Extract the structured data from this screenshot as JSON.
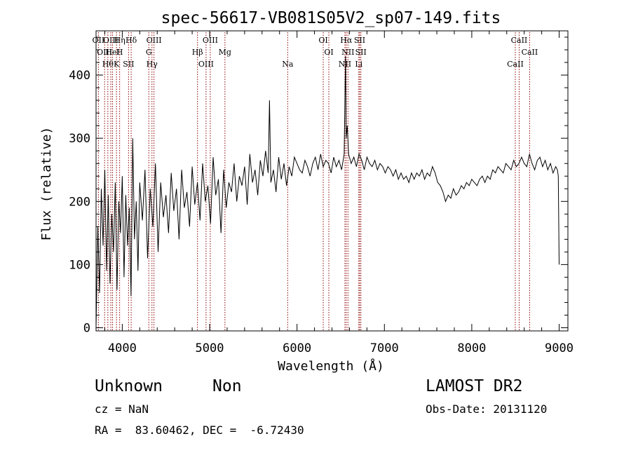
{
  "chart_data": {
    "type": "line",
    "title": "spec-56617-VB081S05V2_sp07-149.fits",
    "xlabel": "Wavelength (Å)",
    "ylabel": "Flux (relative)",
    "xlim": [
      3700,
      9100
    ],
    "ylim": [
      -5,
      470
    ],
    "xticks": [
      4000,
      5000,
      6000,
      7000,
      8000,
      9000
    ],
    "yticks": [
      0,
      100,
      200,
      300,
      400
    ],
    "grid": false,
    "line_color": "#000000",
    "marker_color": "#8b0000",
    "series": [
      {
        "x": [
          3700,
          3720,
          3740,
          3760,
          3780,
          3800,
          3820,
          3840,
          3860,
          3880,
          3900,
          3920,
          3940,
          3960,
          3980,
          4000,
          4020,
          4040,
          4060,
          4080,
          4100,
          4120,
          4140,
          4160,
          4180,
          4200,
          4230,
          4260,
          4290,
          4320,
          4350,
          4380,
          4410,
          4440,
          4470,
          4500,
          4530,
          4560,
          4590,
          4620,
          4650,
          4680,
          4710,
          4740,
          4770,
          4800,
          4830,
          4860,
          4890,
          4920,
          4950,
          4980,
          5010,
          5040,
          5070,
          5100,
          5130,
          5160,
          5190,
          5220,
          5250,
          5280,
          5310,
          5340,
          5370,
          5400,
          5430,
          5460,
          5490,
          5520,
          5550,
          5580,
          5610,
          5640,
          5670,
          5685,
          5700,
          5730,
          5760,
          5790,
          5820,
          5850,
          5880,
          5910,
          5940,
          5970,
          6000,
          6030,
          6060,
          6090,
          6120,
          6150,
          6180,
          6210,
          6240,
          6270,
          6300,
          6330,
          6360,
          6390,
          6420,
          6450,
          6480,
          6510,
          6540,
          6555,
          6563,
          6575,
          6590,
          6620,
          6650,
          6680,
          6710,
          6740,
          6770,
          6800,
          6830,
          6860,
          6890,
          6920,
          6950,
          6980,
          7010,
          7040,
          7070,
          7100,
          7130,
          7160,
          7190,
          7220,
          7250,
          7280,
          7310,
          7340,
          7370,
          7400,
          7430,
          7460,
          7490,
          7520,
          7550,
          7580,
          7610,
          7640,
          7670,
          7700,
          7730,
          7760,
          7790,
          7820,
          7850,
          7880,
          7910,
          7940,
          7970,
          8000,
          8030,
          8060,
          8090,
          8120,
          8150,
          8180,
          8210,
          8240,
          8270,
          8300,
          8330,
          8360,
          8390,
          8420,
          8450,
          8480,
          8510,
          8540,
          8570,
          8600,
          8630,
          8660,
          8690,
          8720,
          8750,
          8780,
          8810,
          8840,
          8870,
          8900,
          8930,
          8960,
          8980,
          8990,
          9000
        ],
        "values": [
          0,
          160,
          55,
          220,
          130,
          250,
          90,
          210,
          70,
          180,
          120,
          230,
          60,
          200,
          150,
          240,
          80,
          210,
          130,
          190,
          50,
          300,
          140,
          200,
          90,
          230,
          170,
          250,
          110,
          220,
          160,
          260,
          120,
          230,
          175,
          210,
          150,
          245,
          185,
          220,
          140,
          250,
          190,
          215,
          160,
          255,
          195,
          230,
          170,
          260,
          200,
          225,
          165,
          270,
          210,
          235,
          150,
          250,
          190,
          230,
          215,
          260,
          200,
          240,
          225,
          255,
          195,
          275,
          230,
          250,
          210,
          265,
          240,
          280,
          245,
          360,
          230,
          250,
          215,
          270,
          235,
          260,
          225,
          255,
          240,
          270,
          260,
          250,
          245,
          265,
          255,
          240,
          260,
          270,
          250,
          275,
          255,
          265,
          260,
          245,
          270,
          255,
          265,
          250,
          275,
          430,
          300,
          320,
          275,
          260,
          270,
          255,
          275,
          265,
          250,
          270,
          260,
          255,
          265,
          250,
          260,
          255,
          245,
          255,
          250,
          240,
          250,
          235,
          245,
          235,
          240,
          230,
          245,
          235,
          245,
          240,
          250,
          235,
          245,
          240,
          255,
          245,
          230,
          225,
          215,
          200,
          210,
          205,
          220,
          210,
          215,
          225,
          220,
          230,
          225,
          235,
          230,
          225,
          235,
          240,
          230,
          240,
          235,
          250,
          245,
          255,
          250,
          245,
          260,
          255,
          250,
          265,
          255,
          260,
          270,
          260,
          255,
          275,
          260,
          250,
          265,
          270,
          255,
          265,
          250,
          260,
          245,
          255,
          250,
          240,
          100
        ]
      }
    ],
    "lines": [
      {
        "x": 3727,
        "labels": [
          "OII"
        ]
      },
      {
        "x": 3798,
        "labels": [
          "OIII"
        ]
      },
      {
        "x": 3835,
        "labels": [
          "Hθ"
        ]
      },
      {
        "x": 3869,
        "labels": [
          "OIII"
        ]
      },
      {
        "x": 3889,
        "labels": [
          "HeI"
        ]
      },
      {
        "x": 3934,
        "labels": [
          "K"
        ]
      },
      {
        "x": 3970,
        "labels": [
          "Hη",
          "H"
        ]
      },
      {
        "x": 4072,
        "labels": [
          "SII"
        ]
      },
      {
        "x": 4102,
        "labels": [
          "Hδ"
        ]
      },
      {
        "x": 4304,
        "labels": [
          "G"
        ]
      },
      {
        "x": 4340,
        "labels": [
          "Hγ"
        ]
      },
      {
        "x": 4363,
        "labels": [
          "OIII"
        ]
      },
      {
        "x": 4861,
        "labels": [
          "Hβ"
        ]
      },
      {
        "x": 4959,
        "labels": [
          "OIII"
        ]
      },
      {
        "x": 5007,
        "labels": [
          "OIII"
        ]
      },
      {
        "x": 5175,
        "labels": [
          "Mg"
        ]
      },
      {
        "x": 5893,
        "labels": [
          "Na"
        ]
      },
      {
        "x": 6300,
        "labels": [
          "OI"
        ]
      },
      {
        "x": 6364,
        "labels": [
          "OI"
        ]
      },
      {
        "x": 6548,
        "labels": [
          "NII"
        ]
      },
      {
        "x": 6563,
        "labels": [
          "Hα"
        ]
      },
      {
        "x": 6583,
        "labels": [
          "NII"
        ]
      },
      {
        "x": 6707,
        "labels": [
          "Li"
        ]
      },
      {
        "x": 6717,
        "labels": [
          "SII"
        ]
      },
      {
        "x": 6731,
        "labels": [
          "SII"
        ]
      },
      {
        "x": 8498,
        "labels": [
          "CaII"
        ]
      },
      {
        "x": 8542,
        "labels": [
          "CaII"
        ]
      },
      {
        "x": 8662,
        "labels": [
          "CaII"
        ]
      }
    ]
  },
  "info": {
    "class": "Unknown",
    "subclass": "Non",
    "survey": "LAMOST DR2",
    "cz": "cz = NaN",
    "obs_date": "Obs-Date: 20131120",
    "coords": "RA =  83.60462, DEC =  -6.72430"
  }
}
